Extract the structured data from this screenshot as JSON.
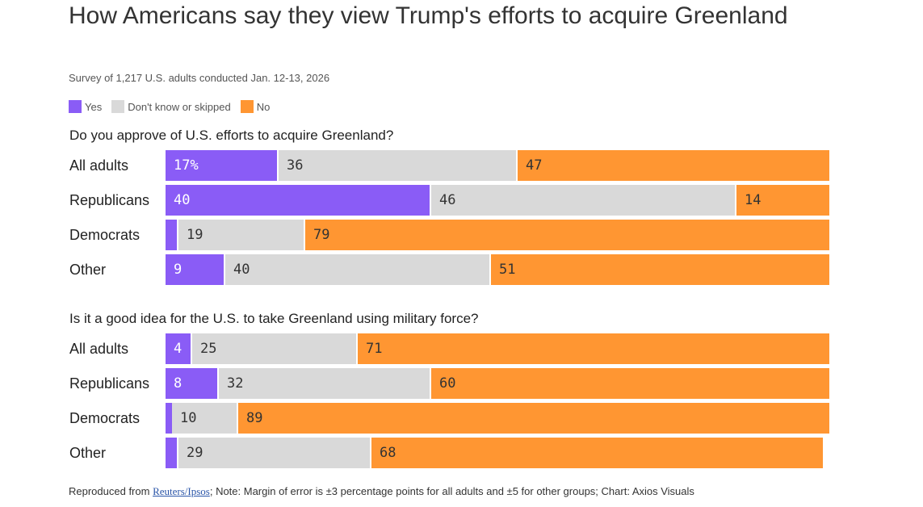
{
  "title": "How Americans say they view Trump's efforts to acquire Greenland",
  "subtitle": "Survey of 1,217 U.S. adults conducted Jan. 12-13, 2026",
  "colors": {
    "yes": "#8a5cf6",
    "dont_know": "#d9d9d9",
    "no": "#ff9632"
  },
  "legend": [
    {
      "key": "yes",
      "label": "Yes"
    },
    {
      "key": "dont_know",
      "label": "Don't know or skipped"
    },
    {
      "key": "no",
      "label": "No"
    }
  ],
  "chart_data": [
    {
      "type": "bar",
      "stacked": true,
      "orientation": "horizontal",
      "title": "Do you approve of U.S. efforts to acquire Greenland?",
      "categories": [
        "All adults",
        "Republicans",
        "Democrats",
        "Other"
      ],
      "series": [
        {
          "name": "Yes",
          "values": [
            17,
            40,
            2,
            9
          ]
        },
        {
          "name": "Don't know or skipped",
          "values": [
            36,
            46,
            19,
            40
          ]
        },
        {
          "name": "No",
          "values": [
            47,
            14,
            79,
            51
          ]
        }
      ],
      "labels": [
        [
          "17%",
          "36",
          "47"
        ],
        [
          "40",
          "46",
          "14"
        ],
        [
          "",
          "19",
          "79"
        ],
        [
          "9",
          "40",
          "51"
        ]
      ],
      "xlim": [
        0,
        100
      ]
    },
    {
      "type": "bar",
      "stacked": true,
      "orientation": "horizontal",
      "title": "Is it a good idea for the U.S. to take Greenland using military force?",
      "categories": [
        "All adults",
        "Republicans",
        "Democrats",
        "Other"
      ],
      "series": [
        {
          "name": "Yes",
          "values": [
            4,
            8,
            1,
            2
          ]
        },
        {
          "name": "Don't know or skipped",
          "values": [
            25,
            32,
            10,
            29
          ]
        },
        {
          "name": "No",
          "values": [
            71,
            60,
            89,
            68
          ]
        }
      ],
      "labels": [
        [
          "4",
          "25",
          "71"
        ],
        [
          "8",
          "32",
          "60"
        ],
        [
          "",
          "10",
          "89"
        ],
        [
          "",
          "29",
          "68"
        ]
      ],
      "xlim": [
        0,
        100
      ]
    }
  ],
  "footnote": {
    "prefix": "Reproduced from ",
    "source_link": "Reuters/Ipsos",
    "suffix": "; Note: Margin of error is ±3 percentage points for all adults and ±5 for other groups; Chart: Axios Visuals"
  }
}
